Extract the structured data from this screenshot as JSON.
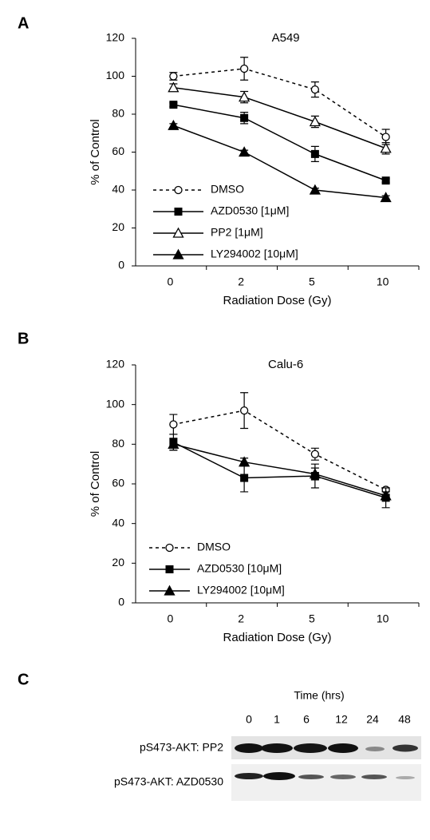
{
  "panels": [
    "A",
    "B",
    "C"
  ],
  "chart_data": [
    {
      "type": "line",
      "title": "A549",
      "x_label": "Radiation Dose (Gy)",
      "y_label": "% of Control",
      "categories": [
        "0",
        "2",
        "5",
        "10"
      ],
      "ylim": [
        0,
        120
      ],
      "yticks": [
        0,
        20,
        40,
        60,
        80,
        100,
        120
      ],
      "legend": "lower left",
      "series": [
        {
          "name": "DMSO",
          "color": "#000000",
          "marker": "open-circle",
          "dash": true,
          "values": [
            100,
            104,
            93,
            68
          ],
          "errors": [
            2,
            6,
            4,
            4
          ]
        },
        {
          "name": "AZD0530 [1μM]",
          "color": "#000000",
          "marker": "filled-square",
          "dash": false,
          "values": [
            85,
            78,
            59,
            45
          ],
          "errors": [
            1,
            3,
            4,
            1
          ]
        },
        {
          "name": "PP2 [1μM]",
          "color": "#000000",
          "marker": "open-triangle",
          "dash": false,
          "values": [
            94,
            89,
            76,
            62
          ],
          "errors": [
            2,
            3,
            3,
            3
          ]
        },
        {
          "name": "LY294002 [10μM]",
          "color": "#000000",
          "marker": "filled-triangle",
          "dash": false,
          "values": [
            74,
            60,
            40,
            36
          ],
          "errors": [
            1,
            1,
            1,
            1
          ]
        }
      ]
    },
    {
      "type": "line",
      "title": "Calu-6",
      "x_label": "Radiation Dose (Gy)",
      "y_label": "% of Control",
      "categories": [
        "0",
        "2",
        "5",
        "10"
      ],
      "ylim": [
        0,
        120
      ],
      "yticks": [
        0,
        20,
        40,
        60,
        80,
        100,
        120
      ],
      "legend": "lower left",
      "series": [
        {
          "name": "DMSO",
          "color": "#000000",
          "marker": "open-circle",
          "dash": true,
          "values": [
            90,
            97,
            75,
            57
          ],
          "errors": [
            5,
            9,
            3,
            1
          ]
        },
        {
          "name": "AZD0530 [10μM]",
          "color": "#000000",
          "marker": "filled-square",
          "dash": false,
          "values": [
            81,
            63,
            64,
            53
          ],
          "errors": [
            4,
            7,
            6,
            5
          ]
        },
        {
          "name": "LY294002 [10μM]",
          "color": "#000000",
          "marker": "filled-triangle",
          "dash": false,
          "values": [
            80,
            71,
            65,
            54
          ],
          "errors": [
            3,
            2,
            3,
            2
          ]
        }
      ]
    }
  ],
  "blot": {
    "title": "Time (hrs)",
    "lanes": [
      "0",
      "1",
      "6",
      "12",
      "24",
      "48"
    ],
    "rows": [
      "pS473-AKT: PP2",
      "pS473-AKT: AZD0530"
    ]
  }
}
